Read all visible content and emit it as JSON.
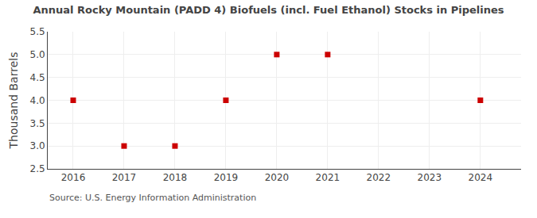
{
  "chart_data": {
    "type": "scatter",
    "title": "Annual Rocky Mountain (PADD 4) Biofuels (incl. Fuel Ethanol) Stocks in Pipelines",
    "ylabel": "Thousand Barrels",
    "annotations": [
      "Source: U.S. Energy Information Administration"
    ],
    "x": [
      2016,
      2017,
      2018,
      2019,
      2020,
      2021,
      2024
    ],
    "values": [
      4.0,
      3.0,
      3.0,
      4.0,
      5.0,
      5.0,
      4.0
    ],
    "color": "#cc0000",
    "marker": "square",
    "xlim": [
      2015.5,
      2024.8
    ],
    "ylim": [
      2.5,
      5.5
    ],
    "xticks": [
      2016,
      2017,
      2018,
      2019,
      2020,
      2021,
      2022,
      2023,
      2024
    ],
    "yticks": [
      2.5,
      {
        "value": 3.0,
        "label": "3.0"
      },
      3.5,
      {
        "value": 4.0,
        "label": "4.0"
      },
      4.5,
      {
        "value": 5.0,
        "label": "5.0"
      },
      5.5
    ],
    "grid": true
  }
}
